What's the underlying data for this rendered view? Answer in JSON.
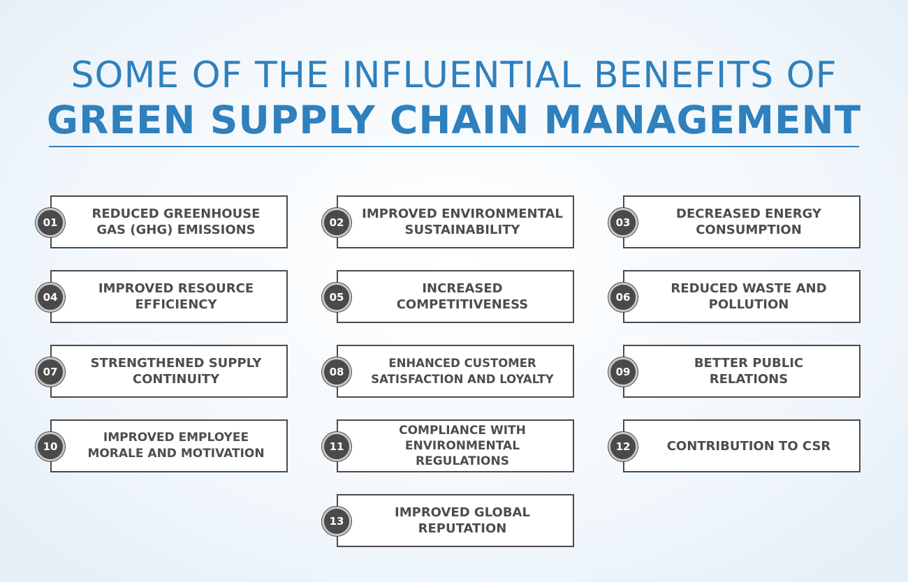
{
  "header": {
    "title_line1": "SOME OF THE INFLUENTIAL BENEFITS OF",
    "title_line2": "GREEN SUPPLY CHAIN MANAGEMENT"
  },
  "benefits": [
    {
      "number": "01",
      "label": "REDUCED GREENHOUSE\nGAS (GHG) EMISSIONS"
    },
    {
      "number": "02",
      "label": "IMPROVED ENVIRONMENTAL\nSUSTAINABILITY"
    },
    {
      "number": "03",
      "label": "DECREASED ENERGY\nCONSUMPTION"
    },
    {
      "number": "04",
      "label": "IMPROVED RESOURCE\nEFFICIENCY"
    },
    {
      "number": "05",
      "label": "INCREASED\nCOMPETITIVENESS"
    },
    {
      "number": "06",
      "label": "REDUCED WASTE AND\nPOLLUTION"
    },
    {
      "number": "07",
      "label": "STRENGTHENED SUPPLY\nCONTINUITY"
    },
    {
      "number": "08",
      "label": "ENHANCED CUSTOMER\nSATISFACTION AND LOYALTY"
    },
    {
      "number": "09",
      "label": "BETTER PUBLIC\nRELATIONS"
    },
    {
      "number": "10",
      "label": "IMPROVED EMPLOYEE\nMORALE AND MOTIVATION"
    },
    {
      "number": "11",
      "label": "COMPLIANCE WITH\nENVIRONMENTAL\nREGULATIONS"
    },
    {
      "number": "12",
      "label": "CONTRIBUTION TO CSR"
    },
    {
      "number": "13",
      "label": "IMPROVED GLOBAL\nREPUTATION"
    }
  ],
  "colors": {
    "title": "#2f80bd",
    "card_border": "#4a4a4a",
    "badge_fill": "#4a4a4a",
    "text": "#4d4d4d"
  }
}
